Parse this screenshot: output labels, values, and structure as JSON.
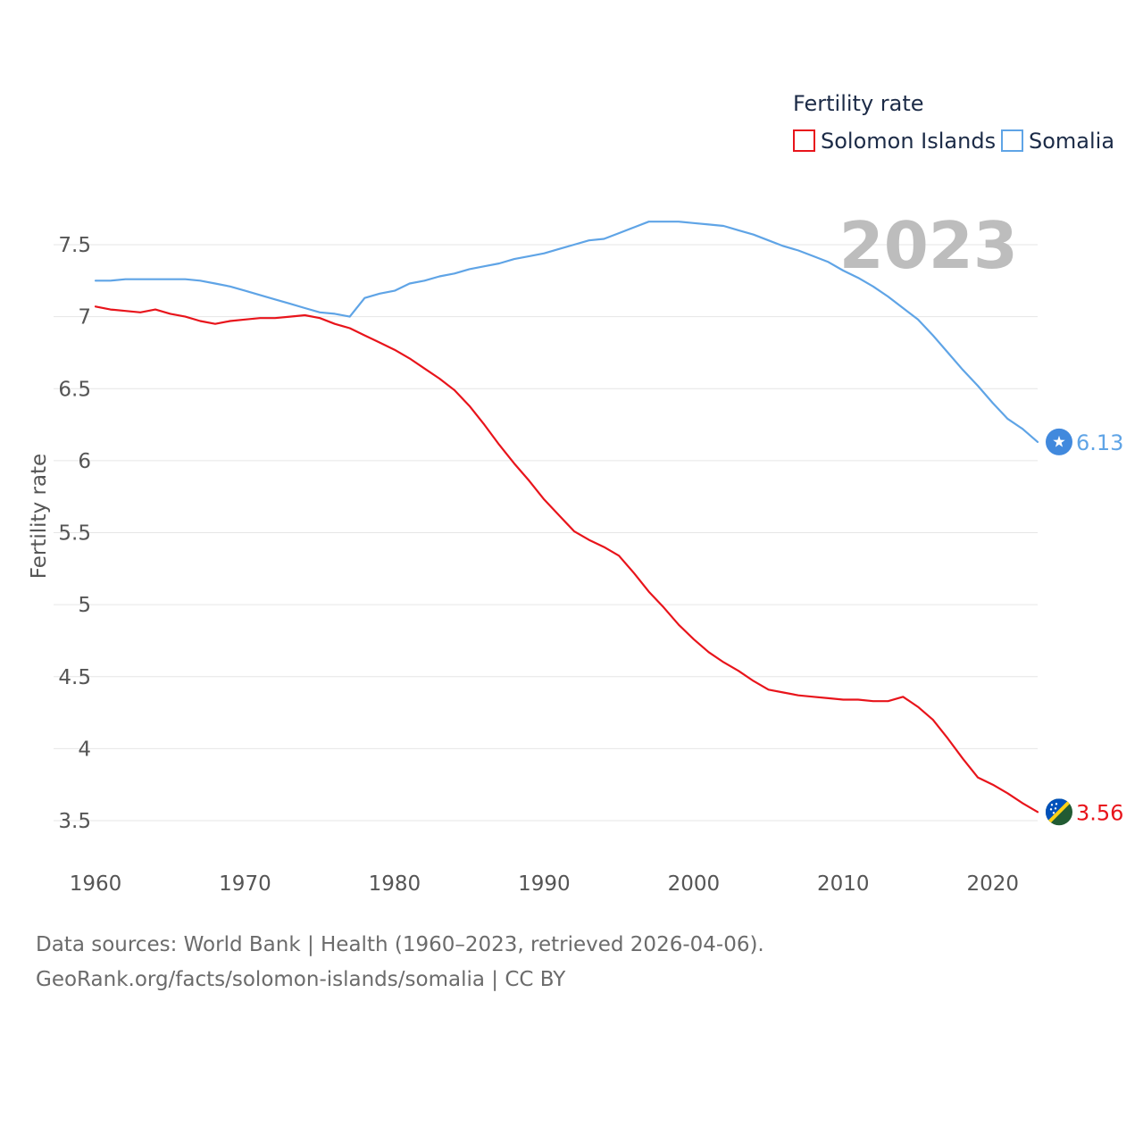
{
  "chart_data": {
    "type": "line",
    "title": "Fertility rate",
    "highlight_year": "2023",
    "xlabel": "",
    "ylabel": "Fertility rate",
    "xlim": [
      1960,
      2023
    ],
    "ylim": [
      3.5,
      7.5
    ],
    "x_ticks": [
      1960,
      1970,
      1980,
      1990,
      2000,
      2010,
      2020
    ],
    "y_ticks": [
      {
        "value": 3.5,
        "label": "3.5"
      },
      {
        "value": 4,
        "label": "4"
      },
      {
        "value": 4.5,
        "label": "4.5"
      },
      {
        "value": 5,
        "label": "5"
      },
      {
        "value": 5.5,
        "label": "5.5"
      },
      {
        "value": 6,
        "label": "6"
      },
      {
        "value": 6.5,
        "label": "6.5"
      },
      {
        "value": 7,
        "label": "7"
      },
      {
        "value": 7.5,
        "label": "7.5"
      }
    ],
    "grid": true,
    "legend_position": "top-right",
    "x": [
      1960,
      1961,
      1962,
      1963,
      1964,
      1965,
      1966,
      1967,
      1968,
      1969,
      1970,
      1971,
      1972,
      1973,
      1974,
      1975,
      1976,
      1977,
      1978,
      1979,
      1980,
      1981,
      1982,
      1983,
      1984,
      1985,
      1986,
      1987,
      1988,
      1989,
      1990,
      1991,
      1992,
      1993,
      1994,
      1995,
      1996,
      1997,
      1998,
      1999,
      2000,
      2001,
      2002,
      2003,
      2004,
      2005,
      2006,
      2007,
      2008,
      2009,
      2010,
      2011,
      2012,
      2013,
      2014,
      2015,
      2016,
      2017,
      2018,
      2019,
      2020,
      2021,
      2022,
      2023
    ],
    "series": [
      {
        "name": "Solomon Islands",
        "color": "#e8141b",
        "end_label": "3.56",
        "flag_icon": "solomon-islands-flag-icon",
        "values": [
          7.07,
          7.05,
          7.04,
          7.03,
          7.05,
          7.02,
          7.0,
          6.97,
          6.95,
          6.97,
          6.98,
          6.99,
          6.99,
          7.0,
          7.01,
          6.99,
          6.95,
          6.92,
          6.87,
          6.82,
          6.77,
          6.71,
          6.64,
          6.57,
          6.49,
          6.38,
          6.25,
          6.11,
          5.98,
          5.86,
          5.73,
          5.62,
          5.51,
          5.45,
          5.4,
          5.34,
          5.22,
          5.09,
          4.98,
          4.86,
          4.76,
          4.67,
          4.6,
          4.54,
          4.47,
          4.41,
          4.39,
          4.37,
          4.36,
          4.35,
          4.34,
          4.34,
          4.33,
          4.33,
          4.36,
          4.29,
          4.2,
          4.07,
          3.93,
          3.8,
          3.75,
          3.69,
          3.62,
          3.56
        ]
      },
      {
        "name": "Somalia",
        "color": "#5fa4e6",
        "end_label": "6.13",
        "flag_icon": "somalia-flag-icon",
        "values": [
          7.25,
          7.25,
          7.26,
          7.26,
          7.26,
          7.26,
          7.26,
          7.25,
          7.23,
          7.21,
          7.18,
          7.15,
          7.12,
          7.09,
          7.06,
          7.03,
          7.02,
          7.0,
          7.13,
          7.16,
          7.18,
          7.23,
          7.25,
          7.28,
          7.3,
          7.33,
          7.35,
          7.37,
          7.4,
          7.42,
          7.44,
          7.47,
          7.5,
          7.53,
          7.54,
          7.58,
          7.62,
          7.66,
          7.66,
          7.66,
          7.65,
          7.64,
          7.63,
          7.6,
          7.57,
          7.53,
          7.49,
          7.46,
          7.42,
          7.38,
          7.32,
          7.27,
          7.21,
          7.14,
          7.06,
          6.98,
          6.87,
          6.75,
          6.63,
          6.52,
          6.4,
          6.29,
          6.22,
          6.13
        ]
      }
    ]
  },
  "source": {
    "line1": "Data sources: World Bank | Health (1960–2023, retrieved 2026-04-06).",
    "line2": "GeoRank.org/facts/solomon-islands/somalia | CC BY"
  }
}
